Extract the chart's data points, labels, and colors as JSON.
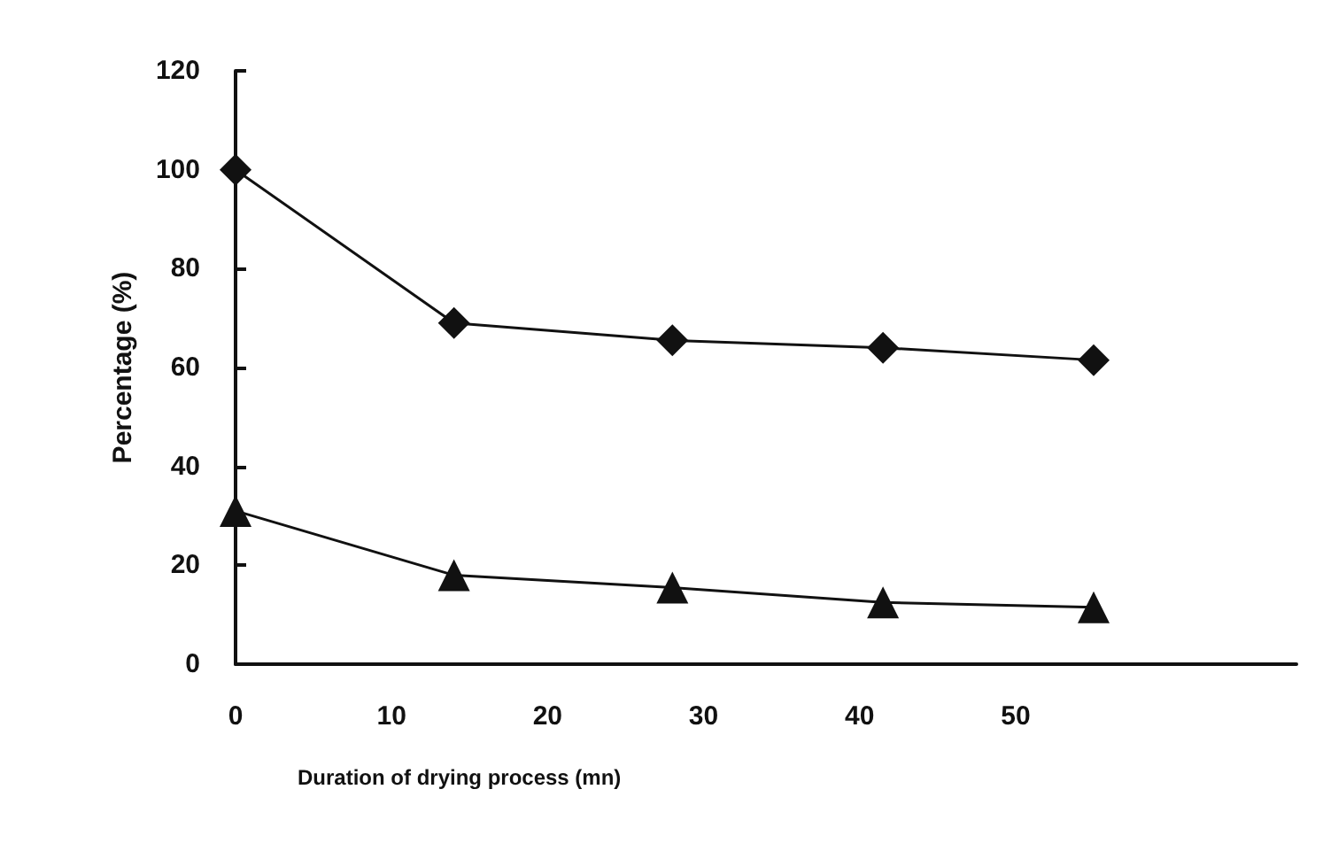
{
  "chart_data": {
    "type": "line",
    "xlabel": "Duration of drying process (mn)",
    "ylabel": "Percentage (%)",
    "x": [
      0,
      14,
      28,
      41.5,
      55
    ],
    "series": [
      {
        "color": "#111111",
        "marker": "diamond",
        "values": [
          100,
          69,
          65.5,
          64,
          61.5
        ]
      },
      {
        "color": "#111111",
        "marker": "triangle",
        "values": [
          31,
          18,
          15.5,
          12.5,
          11.5
        ]
      }
    ],
    "xlim": [
      0,
      68
    ],
    "xticks": [
      0,
      10,
      20,
      30,
      40,
      50
    ],
    "ylim": [
      0,
      120
    ],
    "yticks": [
      0,
      20,
      40,
      60,
      80,
      100,
      120
    ],
    "grid": false
  }
}
